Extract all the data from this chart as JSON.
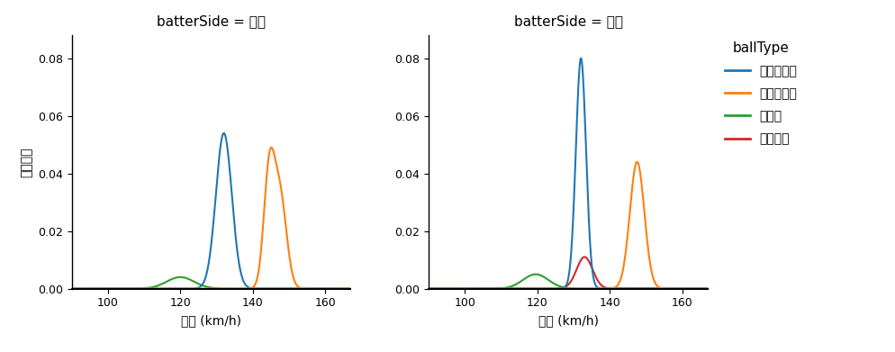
{
  "title_left": "batterSide = 右打",
  "title_right": "batterSide = 左打",
  "xlabel": "球速 (km/h)",
  "ylabel": "確率密度",
  "legend_title": "ballType",
  "legend_entries": [
    "スライダー",
    "ストレート",
    "カーブ",
    "シンカー"
  ],
  "colors": {
    "slider": "#1f77b4",
    "straight": "#ff7f0e",
    "curve": "#2ca02c",
    "sinker": "#d62728"
  },
  "xlim": [
    90,
    167
  ],
  "ylim": [
    0,
    0.088
  ],
  "yticks": [
    0.0,
    0.02,
    0.04,
    0.06,
    0.08
  ],
  "xticks": [
    100,
    120,
    140,
    160
  ],
  "background_color": "#ffffff",
  "panels": {
    "right": {
      "slider": {
        "mean": 132.0,
        "std": 2.2,
        "peak": 0.054,
        "enabled": true
      },
      "straight": {
        "components": [
          {
            "mean": 144.5,
            "std": 1.5,
            "weight": 0.55
          },
          {
            "mean": 147.5,
            "std": 1.8,
            "weight": 0.45
          }
        ],
        "peak": 0.049,
        "enabled": true
      },
      "curve": {
        "mean": 120.0,
        "std": 3.8,
        "peak": 0.004,
        "enabled": true
      },
      "sinker": {
        "enabled": false
      }
    },
    "left": {
      "slider": {
        "mean": 132.0,
        "std": 1.4,
        "peak": 0.08,
        "enabled": true
      },
      "straight": {
        "mean": 147.5,
        "std": 2.0,
        "peak": 0.044,
        "enabled": true
      },
      "curve": {
        "mean": 119.5,
        "std": 3.5,
        "peak": 0.005,
        "enabled": true
      },
      "sinker": {
        "mean": 133.0,
        "std": 2.2,
        "peak": 0.011,
        "enabled": true
      }
    }
  }
}
